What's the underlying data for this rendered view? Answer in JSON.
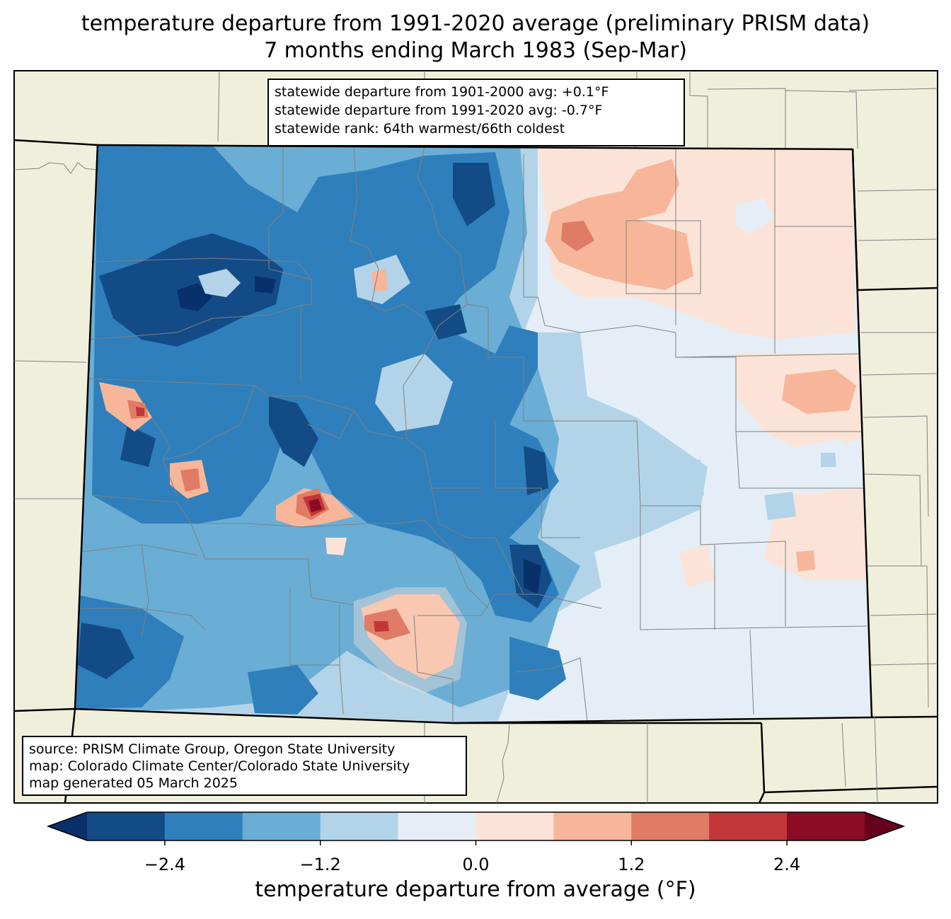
{
  "title": {
    "line1": "temperature departure from 1991-2020 average (preliminary PRISM data)",
    "line2": "7 months ending March 1983 (Sep-Mar)"
  },
  "stats": {
    "line1": "statewide departure from 1901-2000 avg: +0.1°F",
    "line2": "statewide departure from 1991-2020 avg: -0.7°F",
    "line3": "statewide rank: 64th warmest/66th coldest"
  },
  "source": {
    "line1": "source: PRISM Climate Group, Oregon State University",
    "line2": "map: Colorado Climate Center/Colorado State University",
    "line3": "map generated 05 March 2025"
  },
  "colorbar": {
    "label": "temperature departure from average (°F)",
    "ticks": [
      "−2.4",
      "−1.2",
      "0.0",
      "1.2",
      "2.4"
    ],
    "tick_values": [
      -2.4,
      -1.2,
      0.0,
      1.2,
      2.4
    ],
    "range": [
      -3.0,
      3.0
    ],
    "bins": [
      -3.0,
      -2.4,
      -1.8,
      -1.2,
      -0.6,
      0.0,
      0.6,
      1.2,
      1.8,
      2.4,
      3.0
    ],
    "colors": [
      "#08306b",
      "#134b87",
      "#2f7fbc",
      "#6aaed6",
      "#b3d4e8",
      "#e5eef6",
      "#fbe3d7",
      "#f7b69a",
      "#e07b65",
      "#c13639",
      "#8c0c25",
      "#67001f"
    ]
  },
  "map_colors": {
    "land_background": "#efefdc",
    "state_border": "#000000",
    "county_border": "#808080"
  }
}
